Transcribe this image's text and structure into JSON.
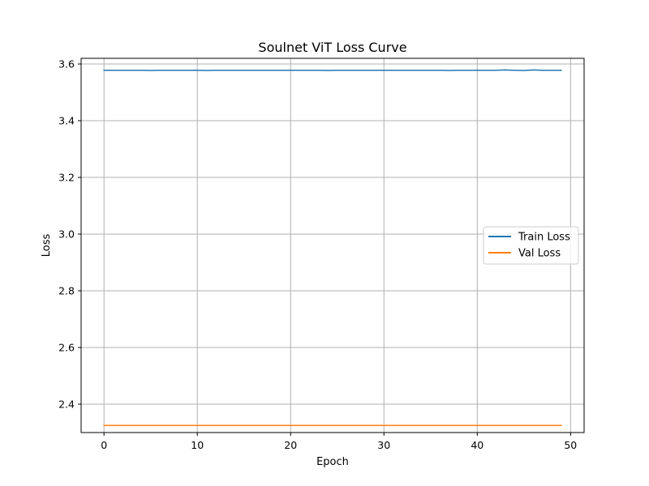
{
  "chart_data": {
    "type": "line",
    "title": "Soulnet ViT Loss Curve",
    "xlabel": "Epoch",
    "ylabel": "Loss",
    "xlim": [
      -2.45,
      51.45
    ],
    "ylim": [
      2.3,
      3.62
    ],
    "xticks": [
      0,
      10,
      20,
      30,
      40,
      50
    ],
    "yticks": [
      2.4,
      2.6,
      2.8,
      3.0,
      3.2,
      3.4,
      3.6
    ],
    "ytick_labels": [
      "2.4",
      "2.6",
      "2.8",
      "3.0",
      "3.2",
      "3.4",
      "3.6"
    ],
    "grid": true,
    "legend_position": "center-right",
    "series": [
      {
        "name": "Train Loss",
        "color": "#1f77b4",
        "x": [
          0,
          1,
          2,
          3,
          4,
          5,
          6,
          7,
          8,
          9,
          10,
          11,
          12,
          13,
          14,
          15,
          16,
          17,
          18,
          19,
          20,
          21,
          22,
          23,
          24,
          25,
          26,
          27,
          28,
          29,
          30,
          31,
          32,
          33,
          34,
          35,
          36,
          37,
          38,
          39,
          40,
          41,
          42,
          43,
          44,
          45,
          46,
          47,
          48,
          49
        ],
        "values": [
          3.578,
          3.578,
          3.578,
          3.578,
          3.578,
          3.577,
          3.578,
          3.578,
          3.578,
          3.578,
          3.578,
          3.577,
          3.578,
          3.578,
          3.578,
          3.578,
          3.578,
          3.578,
          3.578,
          3.578,
          3.578,
          3.578,
          3.578,
          3.578,
          3.577,
          3.578,
          3.578,
          3.578,
          3.578,
          3.578,
          3.578,
          3.578,
          3.578,
          3.578,
          3.578,
          3.578,
          3.578,
          3.577,
          3.578,
          3.578,
          3.578,
          3.578,
          3.578,
          3.579,
          3.578,
          3.577,
          3.579,
          3.578,
          3.578,
          3.578
        ]
      },
      {
        "name": "Val Loss",
        "color": "#ff7f0e",
        "x": [
          0,
          1,
          2,
          3,
          4,
          5,
          6,
          7,
          8,
          9,
          10,
          11,
          12,
          13,
          14,
          15,
          16,
          17,
          18,
          19,
          20,
          21,
          22,
          23,
          24,
          25,
          26,
          27,
          28,
          29,
          30,
          31,
          32,
          33,
          34,
          35,
          36,
          37,
          38,
          39,
          40,
          41,
          42,
          43,
          44,
          45,
          46,
          47,
          48,
          49
        ],
        "values": [
          2.325,
          2.325,
          2.325,
          2.325,
          2.325,
          2.325,
          2.325,
          2.325,
          2.325,
          2.325,
          2.325,
          2.325,
          2.325,
          2.325,
          2.325,
          2.325,
          2.325,
          2.325,
          2.325,
          2.325,
          2.325,
          2.325,
          2.325,
          2.325,
          2.325,
          2.325,
          2.325,
          2.325,
          2.325,
          2.325,
          2.325,
          2.325,
          2.325,
          2.325,
          2.325,
          2.325,
          2.325,
          2.325,
          2.325,
          2.325,
          2.325,
          2.325,
          2.325,
          2.325,
          2.325,
          2.325,
          2.325,
          2.325,
          2.325,
          2.325
        ]
      }
    ]
  }
}
